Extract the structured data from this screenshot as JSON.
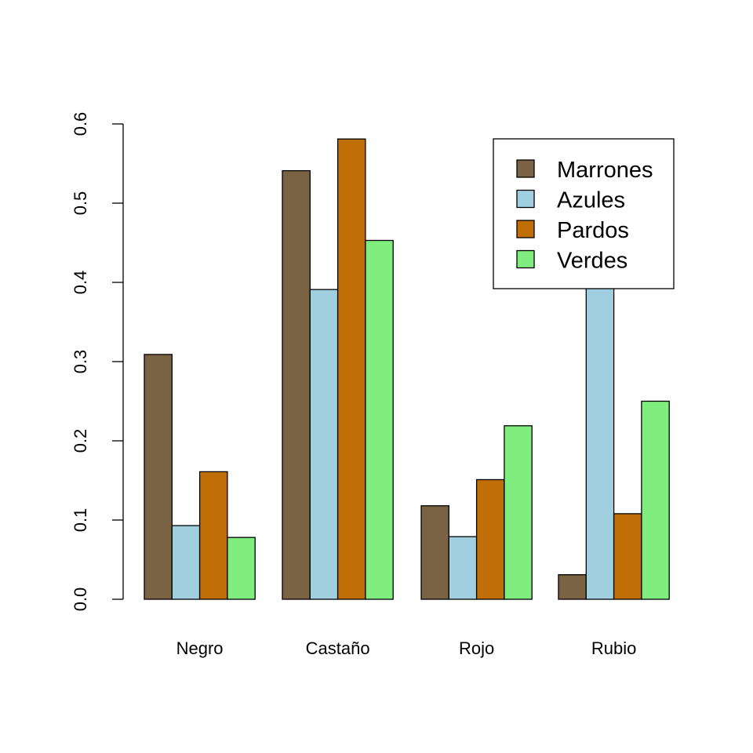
{
  "chart_data": {
    "type": "bar",
    "grouping": "grouped",
    "categories": [
      "Negro",
      "Castaño",
      "Rojo",
      "Rubio"
    ],
    "series": [
      {
        "name": "Marrones",
        "color": "#7A6244",
        "values": [
          0.309,
          0.541,
          0.118,
          0.031
        ]
      },
      {
        "name": "Azules",
        "color": "#A0D0E0",
        "values": [
          0.093,
          0.391,
          0.079,
          0.438
        ]
      },
      {
        "name": "Pardos",
        "color": "#C06E07",
        "values": [
          0.161,
          0.581,
          0.151,
          0.108
        ]
      },
      {
        "name": "Verdes",
        "color": "#80EE7E",
        "values": [
          0.078,
          0.453,
          0.219,
          0.25
        ]
      }
    ],
    "title": "",
    "xlabel": "",
    "ylabel": "",
    "ylim": [
      0,
      0.6
    ],
    "yticks": [
      "0.0",
      "0.1",
      "0.2",
      "0.3",
      "0.4",
      "0.5",
      "0.6"
    ],
    "grid": false,
    "legend_position": "top-right"
  }
}
